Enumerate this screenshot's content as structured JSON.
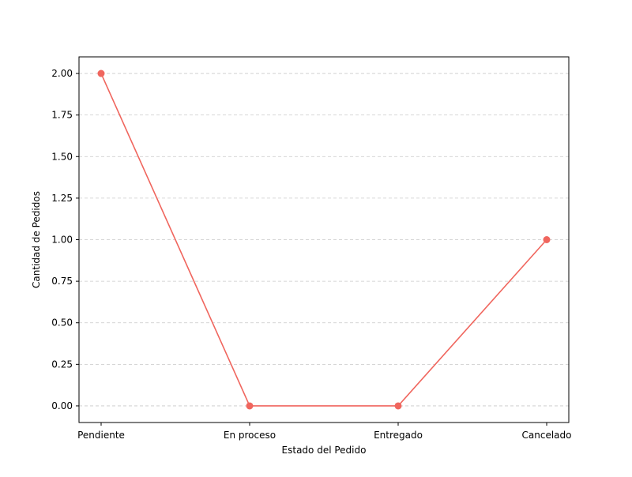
{
  "chart_data": {
    "type": "line",
    "categories": [
      "Pendiente",
      "En proceso",
      "Entregado",
      "Cancelado"
    ],
    "series": [
      {
        "values": [
          2,
          0,
          0,
          1
        ],
        "color": "#f0665e",
        "marker": "circle"
      }
    ],
    "xlabel": "Estado del Pedido",
    "ylabel": "Cantidad de Pedidos",
    "ylim": [
      -0.1,
      2.1
    ],
    "yticks": [
      0.0,
      0.25,
      0.5,
      0.75,
      1.0,
      1.25,
      1.5,
      1.75,
      2.0
    ],
    "ytick_labels": [
      "0.00",
      "0.25",
      "0.50",
      "0.75",
      "1.00",
      "1.25",
      "1.50",
      "1.75",
      "2.00"
    ],
    "grid": {
      "y": true,
      "x": false,
      "style": "dashed",
      "color": "#c8c8c8"
    },
    "legend": "none"
  }
}
